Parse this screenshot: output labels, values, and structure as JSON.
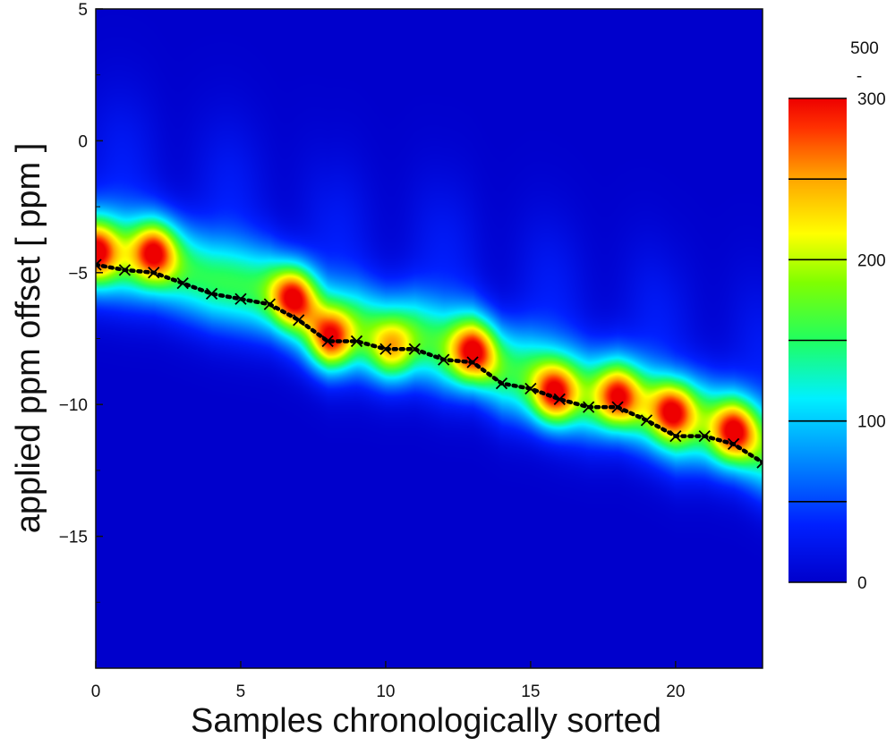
{
  "chart_data": {
    "type": "heatmap",
    "xlabel": "Samples chronologically sorted",
    "ylabel": "applied ppm offset [ ppm ]",
    "xlim": [
      0,
      23
    ],
    "ylim": [
      -20,
      5
    ],
    "x_ticks": [
      0,
      5,
      10,
      15,
      20
    ],
    "y_ticks": [
      5,
      0,
      -5,
      -10,
      -15
    ],
    "x_tick_labels": [
      "0",
      "5",
      "10",
      "15",
      "20"
    ],
    "y_tick_labels": [
      "5",
      "0",
      "−5",
      "−10",
      "−15"
    ],
    "colorbar": {
      "range": [
        0,
        300
      ],
      "tick_values": [
        0,
        100,
        200,
        300
      ],
      "tick_labels": [
        "0",
        "100",
        "200",
        "300"
      ],
      "top_label": "500",
      "top_label_sub": "-",
      "colormap": "jet"
    },
    "series": [
      {
        "type": "line",
        "marker": "x",
        "linestyle": "dotted",
        "color": "#000000",
        "x": [
          0,
          1,
          2,
          3,
          4,
          5,
          6,
          7,
          8,
          9,
          10,
          11,
          12,
          13,
          14,
          15,
          16,
          17,
          18,
          19,
          20,
          21,
          22,
          23
        ],
        "y": [
          -4.7,
          -4.9,
          -5.0,
          -5.4,
          -5.8,
          -6.0,
          -6.2,
          -6.8,
          -7.6,
          -7.6,
          -7.9,
          -7.9,
          -8.3,
          -8.4,
          -9.2,
          -9.4,
          -9.8,
          -10.1,
          -10.1,
          -10.6,
          -11.2,
          -11.2,
          -11.5,
          -12.2
        ]
      }
    ],
    "intensity_ridge": {
      "peak_x": [
        0,
        2,
        6.8,
        8.1,
        10.2,
        13,
        15.8,
        18,
        19.9,
        22
      ],
      "peak_y": [
        -4.2,
        -4.2,
        -5.9,
        -7.5,
        -7.9,
        -8.0,
        -9.6,
        -9.7,
        -10.2,
        -11.0
      ],
      "peak_value": [
        300,
        300,
        300,
        290,
        240,
        300,
        300,
        290,
        300,
        300
      ]
    }
  }
}
